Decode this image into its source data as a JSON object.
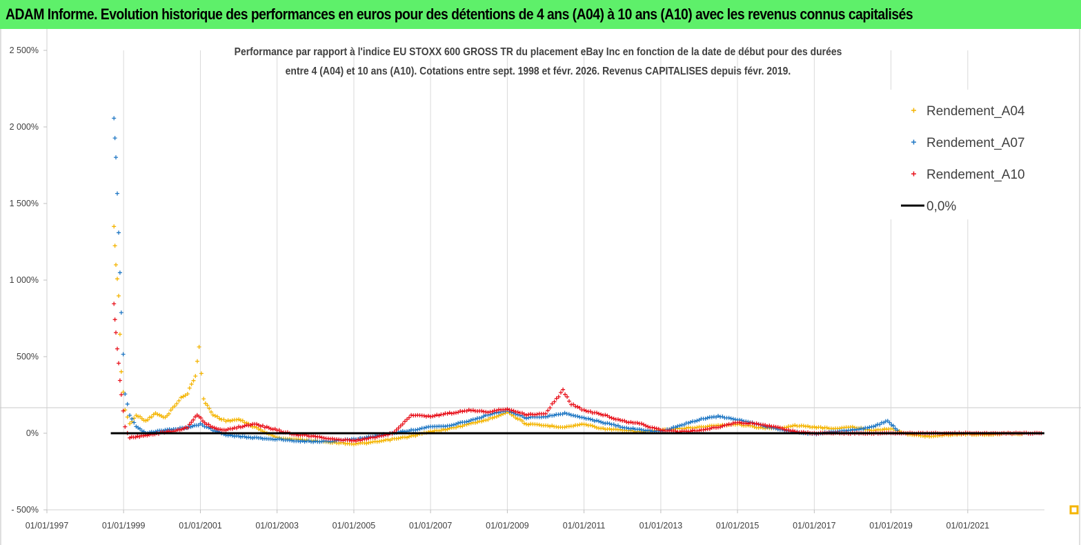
{
  "banner": {
    "title": "ADAM Informe. Evolution historique des performances en euros pour des détentions de 4 ans (A04) à 10 ans (A10) avec les revenus connus capitalisés",
    "background": "#5ef06a"
  },
  "chart_data": {
    "type": "scatter",
    "title_line1": "Performance par rapport à l'indice EU STOXX 600 GROSS TR  du placement eBay Inc en fonction de la date de début pour des durées",
    "title_line2": "entre 4 (A04) et 10 ans (A10). Cotations entre sept. 1998 et févr. 2026. Revenus CAPITALISES depuis févr. 2019.",
    "xlabel": "",
    "ylabel": "",
    "x_ticks": [
      "01/01/1997",
      "01/01/1999",
      "01/01/2001",
      "01/01/2003",
      "01/01/2005",
      "01/01/2007",
      "01/01/2009",
      "01/01/2011",
      "01/01/2013",
      "01/01/2015",
      "01/01/2017",
      "01/01/2019",
      "01/01/2021"
    ],
    "y_ticks": [
      "- 500%",
      "0%",
      "500%",
      "1 000%",
      "1 500%",
      "2 000%",
      "2 500%"
    ],
    "ylim": [
      -500,
      2500
    ],
    "xlim": [
      "01/01/1997",
      "01/01/2023"
    ],
    "grid": "vertical",
    "legend_position": "top-right",
    "series": [
      {
        "name": "Rendement_A04",
        "color": "#f4b400",
        "x": [
          "1998-10-01",
          "1998-10-20",
          "1998-11-15",
          "1998-12-10",
          "1999-01-15",
          "1999-03-01",
          "1999-05-01",
          "1999-08-01",
          "1999-11-01",
          "2000-02-01",
          "2000-05-01",
          "2000-07-01",
          "2000-09-01",
          "2000-11-15",
          "2000-12-20",
          "2001-02-01",
          "2001-05-01",
          "2001-09-01",
          "2002-01-01",
          "2002-06-01",
          "2003-01-01",
          "2003-07-01",
          "2004-01-01",
          "2004-07-01",
          "2005-01-01",
          "2005-07-01",
          "2006-01-01",
          "2006-07-01",
          "2007-01-01",
          "2007-07-01",
          "2008-01-01",
          "2008-07-01",
          "2009-01-01",
          "2009-07-01",
          "2010-01-01",
          "2010-07-01",
          "2011-01-01",
          "2011-07-01",
          "2012-01-01",
          "2012-07-01",
          "2013-01-01",
          "2013-07-01",
          "2014-01-01",
          "2014-07-01",
          "2015-01-01",
          "2015-07-01",
          "2016-01-01",
          "2016-07-01",
          "2017-01-01",
          "2017-07-01",
          "2018-01-01",
          "2018-07-01",
          "2019-01-01",
          "2019-07-01",
          "2020-01-01",
          "2020-07-01",
          "2021-01-01",
          "2021-07-01",
          "2022-01-01",
          "2022-06-01"
        ],
        "values": [
          1350,
          1100,
          900,
          400,
          150,
          60,
          120,
          80,
          130,
          100,
          180,
          230,
          260,
          380,
          560,
          220,
          120,
          80,
          90,
          40,
          -30,
          -40,
          -50,
          -60,
          -70,
          -60,
          -40,
          -20,
          10,
          30,
          60,
          90,
          140,
          60,
          50,
          40,
          60,
          30,
          20,
          10,
          20,
          30,
          40,
          50,
          60,
          40,
          30,
          50,
          40,
          30,
          40,
          20,
          30,
          -10,
          -20,
          -10,
          -5,
          -10,
          0,
          -5
        ]
      },
      {
        "name": "Rendement_A07",
        "color": "#1f77c4",
        "x": [
          "1998-10-01",
          "1998-10-20",
          "1998-11-15",
          "1998-12-10",
          "1999-01-15",
          "1999-03-01",
          "1999-05-01",
          "1999-08-01",
          "1999-11-01",
          "2000-02-01",
          "2000-06-01",
          "2000-10-01",
          "2001-01-01",
          "2001-05-01",
          "2001-09-01",
          "2002-01-01",
          "2002-06-01",
          "2003-01-01",
          "2003-07-01",
          "2004-01-01",
          "2004-07-01",
          "2005-01-01",
          "2005-07-01",
          "2006-01-01",
          "2006-07-01",
          "2007-01-01",
          "2007-07-01",
          "2008-01-01",
          "2008-07-01",
          "2009-01-01",
          "2009-07-01",
          "2010-01-01",
          "2010-07-01",
          "2011-01-01",
          "2011-07-01",
          "2012-01-01",
          "2012-07-01",
          "2013-01-01",
          "2013-07-01",
          "2014-01-01",
          "2014-07-01",
          "2015-01-01",
          "2015-07-01",
          "2016-01-01",
          "2016-07-01",
          "2017-01-01",
          "2017-07-01",
          "2018-01-01",
          "2018-07-01",
          "2018-12-01",
          "2019-03-01"
        ],
        "values": [
          2050,
          1800,
          1300,
          800,
          250,
          120,
          40,
          0,
          10,
          20,
          30,
          40,
          60,
          20,
          -10,
          -20,
          -30,
          -40,
          -50,
          -55,
          -50,
          -40,
          -20,
          0,
          20,
          40,
          50,
          80,
          120,
          150,
          100,
          110,
          130,
          100,
          70,
          40,
          20,
          10,
          50,
          90,
          110,
          90,
          60,
          30,
          10,
          -5,
          10,
          20,
          40,
          80,
          20
        ]
      },
      {
        "name": "Rendement_A10",
        "color": "#e8111b",
        "x": [
          "1998-10-01",
          "1998-10-20",
          "1998-11-15",
          "1998-12-10",
          "1999-01-15",
          "1999-03-01",
          "1999-06-01",
          "1999-09-01",
          "1999-12-01",
          "2000-03-01",
          "2000-06-01",
          "2000-09-01",
          "2000-12-01",
          "2001-03-01",
          "2001-06-01",
          "2001-09-01",
          "2002-01-01",
          "2002-06-01",
          "2003-01-01",
          "2003-07-01",
          "2004-01-01",
          "2004-07-01",
          "2005-01-01",
          "2005-07-01",
          "2006-01-01",
          "2006-07-01",
          "2007-01-01",
          "2007-07-01",
          "2008-01-01",
          "2008-07-01",
          "2009-01-01",
          "2009-07-01",
          "2010-01-01",
          "2010-06-15",
          "2010-09-01",
          "2011-01-01",
          "2011-07-01",
          "2012-01-01",
          "2012-07-01",
          "2013-01-01",
          "2013-07-01",
          "2014-01-01",
          "2014-07-01",
          "2015-01-01",
          "2015-07-01",
          "2016-01-01",
          "2016-07-01",
          "2017-01-01",
          "2017-07-01",
          "2018-01-01",
          "2018-07-01",
          "2019-01-01",
          "2019-07-01",
          "2020-01-01",
          "2020-07-01",
          "2021-01-01",
          "2021-07-01",
          "2022-01-01",
          "2022-06-01",
          "2022-12-01"
        ],
        "values": [
          850,
          650,
          450,
          250,
          40,
          -30,
          -20,
          -10,
          0,
          10,
          20,
          40,
          120,
          60,
          30,
          20,
          40,
          60,
          20,
          -10,
          -20,
          -40,
          -50,
          -30,
          0,
          120,
          110,
          130,
          150,
          140,
          160,
          120,
          130,
          280,
          190,
          150,
          120,
          80,
          60,
          20,
          10,
          20,
          40,
          70,
          60,
          40,
          10,
          0,
          0,
          0,
          0,
          0,
          0,
          0,
          0,
          0,
          0,
          0,
          0,
          0
        ]
      },
      {
        "name": "0,0%",
        "color": "#000000",
        "x": [
          "1998-09-01",
          "2022-12-31"
        ],
        "values": [
          0,
          0
        ]
      }
    ]
  }
}
